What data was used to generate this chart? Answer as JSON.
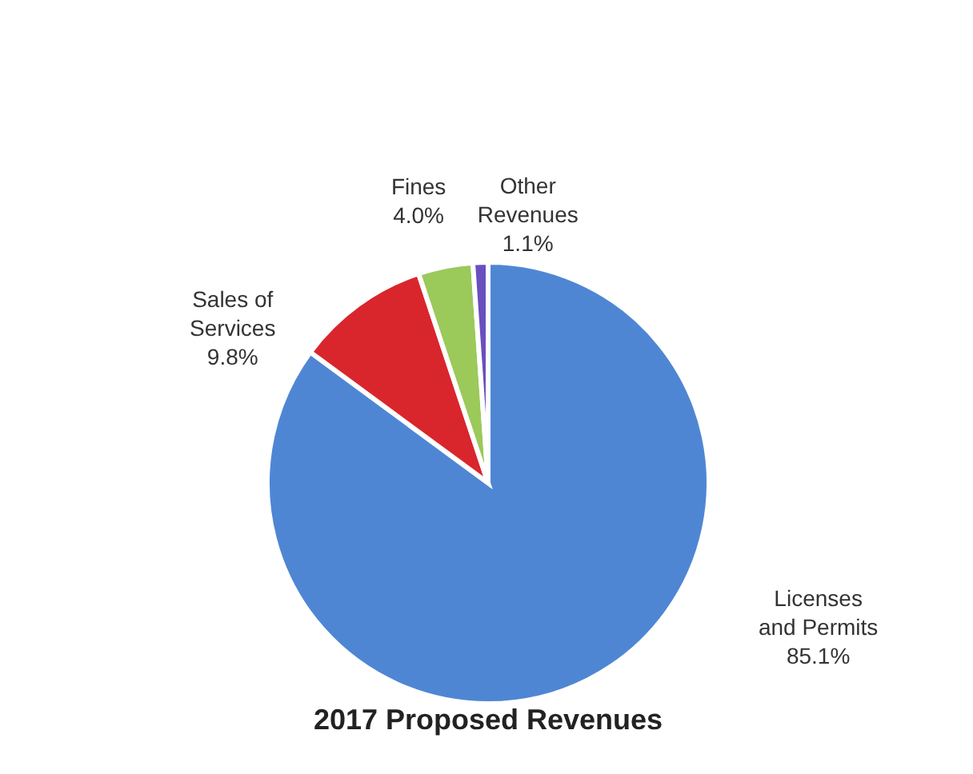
{
  "chart_data": {
    "type": "pie",
    "title": "2017 Proposed Revenues",
    "categories": [
      "Licenses\nand Permits",
      "Sales of\nServices",
      "Fines",
      "Other\nRevenues"
    ],
    "values": [
      85.1,
      9.8,
      4.0,
      1.1
    ],
    "colors": [
      "#4f86d4",
      "#d9262c",
      "#9bc95a",
      "#6a4fbf"
    ],
    "value_labels": [
      "85.1%",
      "9.8%",
      "4.0%",
      "1.1%"
    ],
    "legend": false
  }
}
